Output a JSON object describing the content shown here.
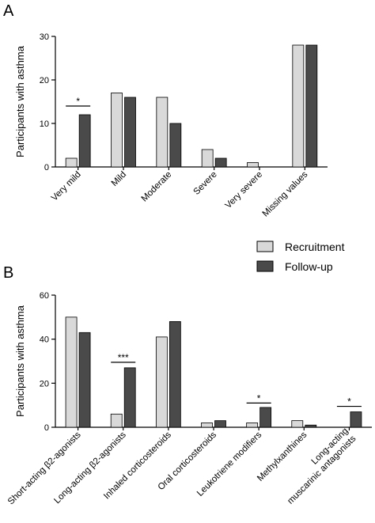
{
  "legend": {
    "items": [
      {
        "label": "Recruitment",
        "color": "#d9d9d9"
      },
      {
        "label": "Follow-up",
        "color": "#4a4a4a"
      }
    ]
  },
  "chart_data": [
    {
      "type": "bar",
      "panel": "A",
      "ylabel": "Participants with asthma",
      "ylim": [
        0,
        30
      ],
      "yticks": [
        0,
        10,
        20,
        30
      ],
      "categories": [
        "Very mild",
        "Mild",
        "Moderate",
        "Severe",
        "Very severe",
        "Missing values"
      ],
      "series": [
        {
          "name": "Recruitment",
          "values": [
            2,
            17,
            16,
            4,
            1,
            28
          ]
        },
        {
          "name": "Follow-up",
          "values": [
            12,
            16,
            10,
            2,
            0,
            28
          ]
        }
      ],
      "annotations": [
        {
          "category_index": 0,
          "text": "*",
          "y": 14
        }
      ]
    },
    {
      "type": "bar",
      "panel": "B",
      "ylabel": "Participants with asthma",
      "ylim": [
        0,
        60
      ],
      "yticks": [
        0,
        20,
        40,
        60
      ],
      "categories": [
        "Short-acting β2-agonists",
        "Long-acting β2-agonists",
        "Inhaled corticosteroids",
        "Oral corticosteroids",
        "Leukotriene modifiers",
        "Methylxanthines",
        "Long-acting|muscarinic antagonists"
      ],
      "series": [
        {
          "name": "Recruitment",
          "values": [
            50,
            6,
            41,
            2,
            2,
            3,
            0
          ]
        },
        {
          "name": "Follow-up",
          "values": [
            43,
            27,
            48,
            3,
            9,
            1,
            7
          ]
        }
      ],
      "annotations": [
        {
          "category_index": 1,
          "text": "***",
          "y": 29.5
        },
        {
          "category_index": 4,
          "text": "*",
          "y": 11
        },
        {
          "category_index": 6,
          "text": "*",
          "y": 9.5
        }
      ]
    }
  ]
}
